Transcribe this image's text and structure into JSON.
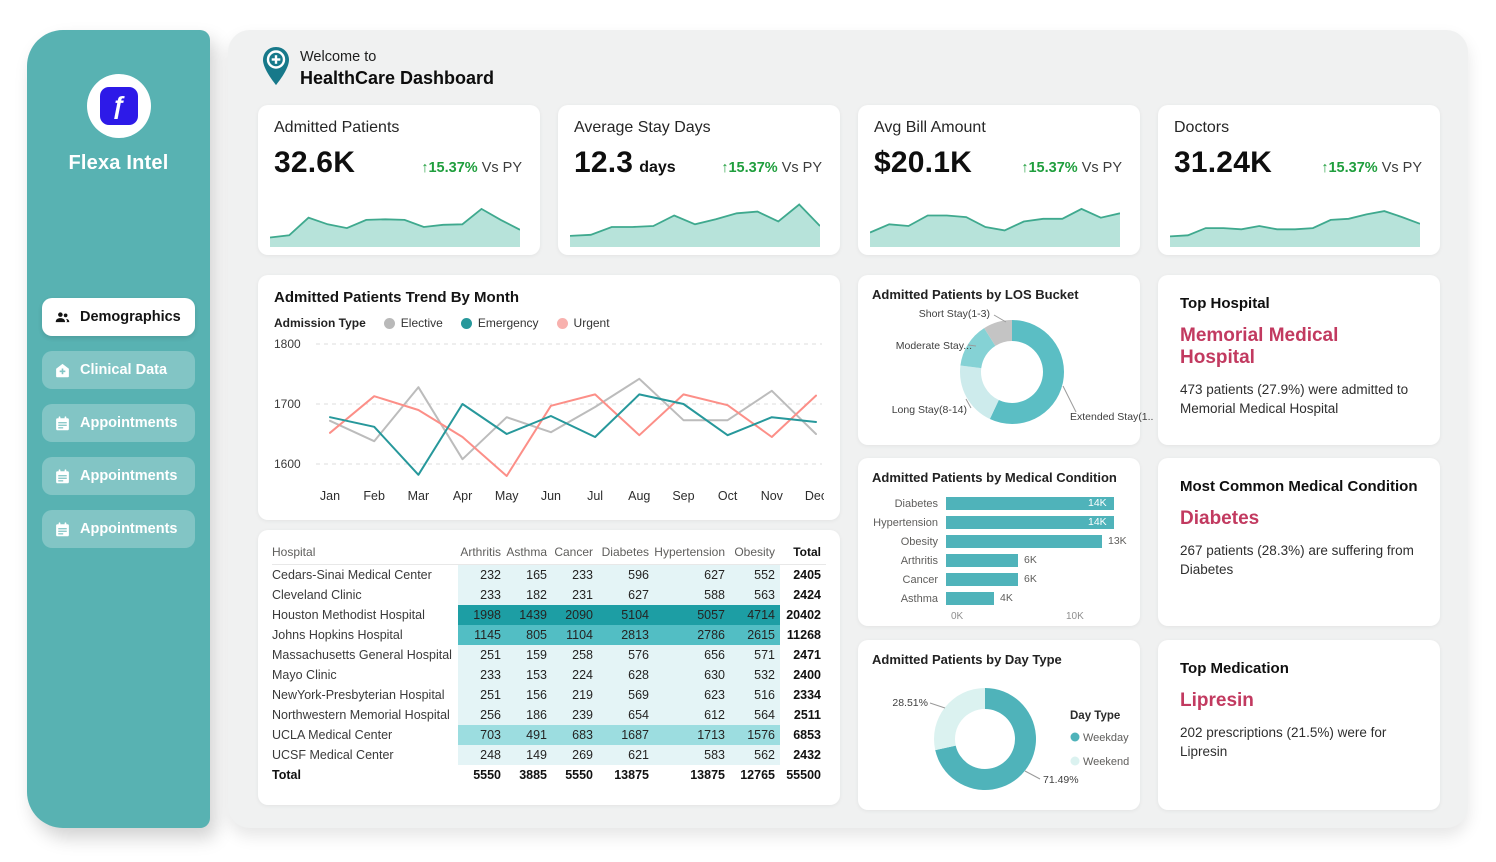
{
  "brand": {
    "name": "Flexa Intel",
    "logo_glyph": "ƒ"
  },
  "sidebar": {
    "items": [
      {
        "label": "Demographics",
        "icon": "people-icon",
        "active": true
      },
      {
        "label": "Clinical Data",
        "icon": "clinical-icon",
        "active": false
      },
      {
        "label": "Appointments",
        "icon": "calendar-icon",
        "active": false
      },
      {
        "label": "Appointments",
        "icon": "calendar-icon",
        "active": false
      },
      {
        "label": "Appointments",
        "icon": "calendar-icon",
        "active": false
      }
    ]
  },
  "header": {
    "welcome": "Welcome to",
    "title": "HealthCare Dashboard"
  },
  "kpis": [
    {
      "title": "Admitted Patients",
      "value": "32.6K",
      "unit": "",
      "delta": "15.37%",
      "vs": "Vs PY",
      "spark": [
        10,
        14,
        46,
        34,
        27,
        42,
        43,
        42,
        29,
        33,
        34,
        62,
        42,
        24
      ]
    },
    {
      "title": "Average Stay Days",
      "value": "12.3",
      "unit": "days",
      "delta": "15.37%",
      "vs": "Vs PY",
      "spark": [
        13,
        15,
        29,
        29,
        31,
        50,
        34,
        43,
        54,
        57,
        39,
        70,
        31
      ]
    },
    {
      "title": "Avg Bill Amount",
      "value": "$20.1K",
      "unit": "",
      "delta": "15.37%",
      "vs": "Vs PY",
      "spark": [
        19,
        34,
        31,
        50,
        50,
        47,
        29,
        23,
        39,
        44,
        44,
        62,
        46,
        54
      ]
    },
    {
      "title": "Doctors",
      "value": "31.24K",
      "unit": "",
      "delta": "15.37%",
      "vs": "Vs PY",
      "spark": [
        12,
        14,
        27,
        27,
        25,
        31,
        25,
        25,
        27,
        42,
        44,
        52,
        58,
        47,
        35
      ]
    }
  ],
  "trend": {
    "title": "Admitted Patients Trend By Month",
    "legend_title": "Admission Type",
    "type": "line",
    "months": [
      "Jan",
      "Feb",
      "Mar",
      "Apr",
      "May",
      "Jun",
      "Jul",
      "Aug",
      "Sep",
      "Oct",
      "Nov",
      "Dec"
    ],
    "y_ticks": [
      1800,
      1700,
      1600
    ],
    "series": [
      {
        "name": "Elective",
        "color": "#bcbcbc",
        "dot": "#b9b9b9",
        "values": [
          1672,
          1638,
          1728,
          1608,
          1678,
          1653,
          1695,
          1742,
          1673,
          1673,
          1722,
          1650
        ]
      },
      {
        "name": "Emergency",
        "color": "#27989b",
        "dot": "#27989b",
        "values": [
          1678,
          1662,
          1582,
          1700,
          1650,
          1680,
          1645,
          1716,
          1700,
          1648,
          1678,
          1670
        ]
      },
      {
        "name": "Urgent",
        "color": "#fc8f88",
        "dot": "#f8b1ae",
        "values": [
          1652,
          1713,
          1690,
          1645,
          1580,
          1697,
          1716,
          1648,
          1716,
          1698,
          1645,
          1714
        ]
      }
    ]
  },
  "hospital_table": {
    "columns": [
      "Hospital",
      "Arthritis",
      "Asthma",
      "Cancer",
      "Diabetes",
      "Hypertension",
      "Obesity",
      "Total"
    ],
    "rows": [
      {
        "name": "Cedars-Sinai Medical Center",
        "values": [
          232,
          165,
          233,
          596,
          627,
          552
        ],
        "total": 2405
      },
      {
        "name": "Cleveland Clinic",
        "values": [
          233,
          182,
          231,
          627,
          588,
          563
        ],
        "total": 2424
      },
      {
        "name": "Houston Methodist Hospital",
        "values": [
          1998,
          1439,
          2090,
          5104,
          5057,
          4714
        ],
        "total": 20402
      },
      {
        "name": "Johns Hopkins Hospital",
        "values": [
          1145,
          805,
          1104,
          2813,
          2786,
          2615
        ],
        "total": 11268
      },
      {
        "name": "Massachusetts General Hospital",
        "values": [
          251,
          159,
          258,
          576,
          656,
          571
        ],
        "total": 2471
      },
      {
        "name": "Mayo Clinic",
        "values": [
          233,
          153,
          224,
          628,
          630,
          532
        ],
        "total": 2400
      },
      {
        "name": "NewYork-Presbyterian Hospital",
        "values": [
          251,
          156,
          219,
          569,
          623,
          516
        ],
        "total": 2334
      },
      {
        "name": "Northwestern Memorial Hospital",
        "values": [
          256,
          186,
          239,
          654,
          612,
          564
        ],
        "total": 2511
      },
      {
        "name": "UCLA Medical Center",
        "values": [
          703,
          491,
          683,
          1687,
          1713,
          1576
        ],
        "total": 6853
      },
      {
        "name": "UCSF Medical Center",
        "values": [
          248,
          149,
          269,
          621,
          583,
          562
        ],
        "total": 2432
      }
    ],
    "total_label": "Total",
    "totals": [
      5550,
      3885,
      5550,
      13875,
      13875,
      12765
    ],
    "grand_total": 55500
  },
  "los": {
    "title": "Admitted Patients by LOS Bucket",
    "type": "donut",
    "segments": [
      {
        "label": "Extended Stay(1...",
        "pct": 57,
        "color": "#5bbec4"
      },
      {
        "label": "Long Stay(8-14)",
        "pct": 20,
        "color": "#cdebec"
      },
      {
        "label": "Moderate Stay...",
        "pct": 14,
        "color": "#85d2d5"
      },
      {
        "label": "Short Stay(1-3)",
        "pct": 9,
        "color": "#c4c4c4"
      }
    ]
  },
  "conditions": {
    "title": "Admitted Patients by Medical Condition",
    "type": "bar",
    "axis_labels": [
      "0K",
      "10K"
    ],
    "items": [
      {
        "label": "Diabetes",
        "value": 14,
        "text": "14K",
        "inside": true
      },
      {
        "label": "Hypertension",
        "value": 14,
        "text": "14K",
        "inside": true
      },
      {
        "label": "Obesity",
        "value": 13,
        "text": "13K",
        "inside": false
      },
      {
        "label": "Arthritis",
        "value": 6,
        "text": "6K",
        "inside": false
      },
      {
        "label": "Cancer",
        "value": 6,
        "text": "6K",
        "inside": false
      },
      {
        "label": "Asthma",
        "value": 4,
        "text": "4K",
        "inside": false
      }
    ],
    "bar_color": "#4fb3ba"
  },
  "day_type": {
    "title": "Admitted Patients by Day Type",
    "type": "donut",
    "legend_title": "Day Type",
    "segments": [
      {
        "label": "Weekday",
        "pct_text": "71.49%",
        "pct": 71.49,
        "color": "#4fb3ba"
      },
      {
        "label": "Weekend",
        "pct_text": "28.51%",
        "pct": 28.51,
        "color": "#dbf2f0"
      }
    ]
  },
  "insights": [
    {
      "title": "Top Hospital",
      "highlight": "Memorial Medical Hospital",
      "body": "473 patients (27.9%) were admitted to Memorial Medical Hospital"
    },
    {
      "title": "Most Common Medical Condition",
      "highlight": "Diabetes",
      "body": "267 patients (28.3%) are suffering from Diabetes"
    },
    {
      "title": "Top Medication",
      "highlight": "Lipresin",
      "body": "202 prescriptions (21.5%) were for Lipresin"
    }
  ]
}
